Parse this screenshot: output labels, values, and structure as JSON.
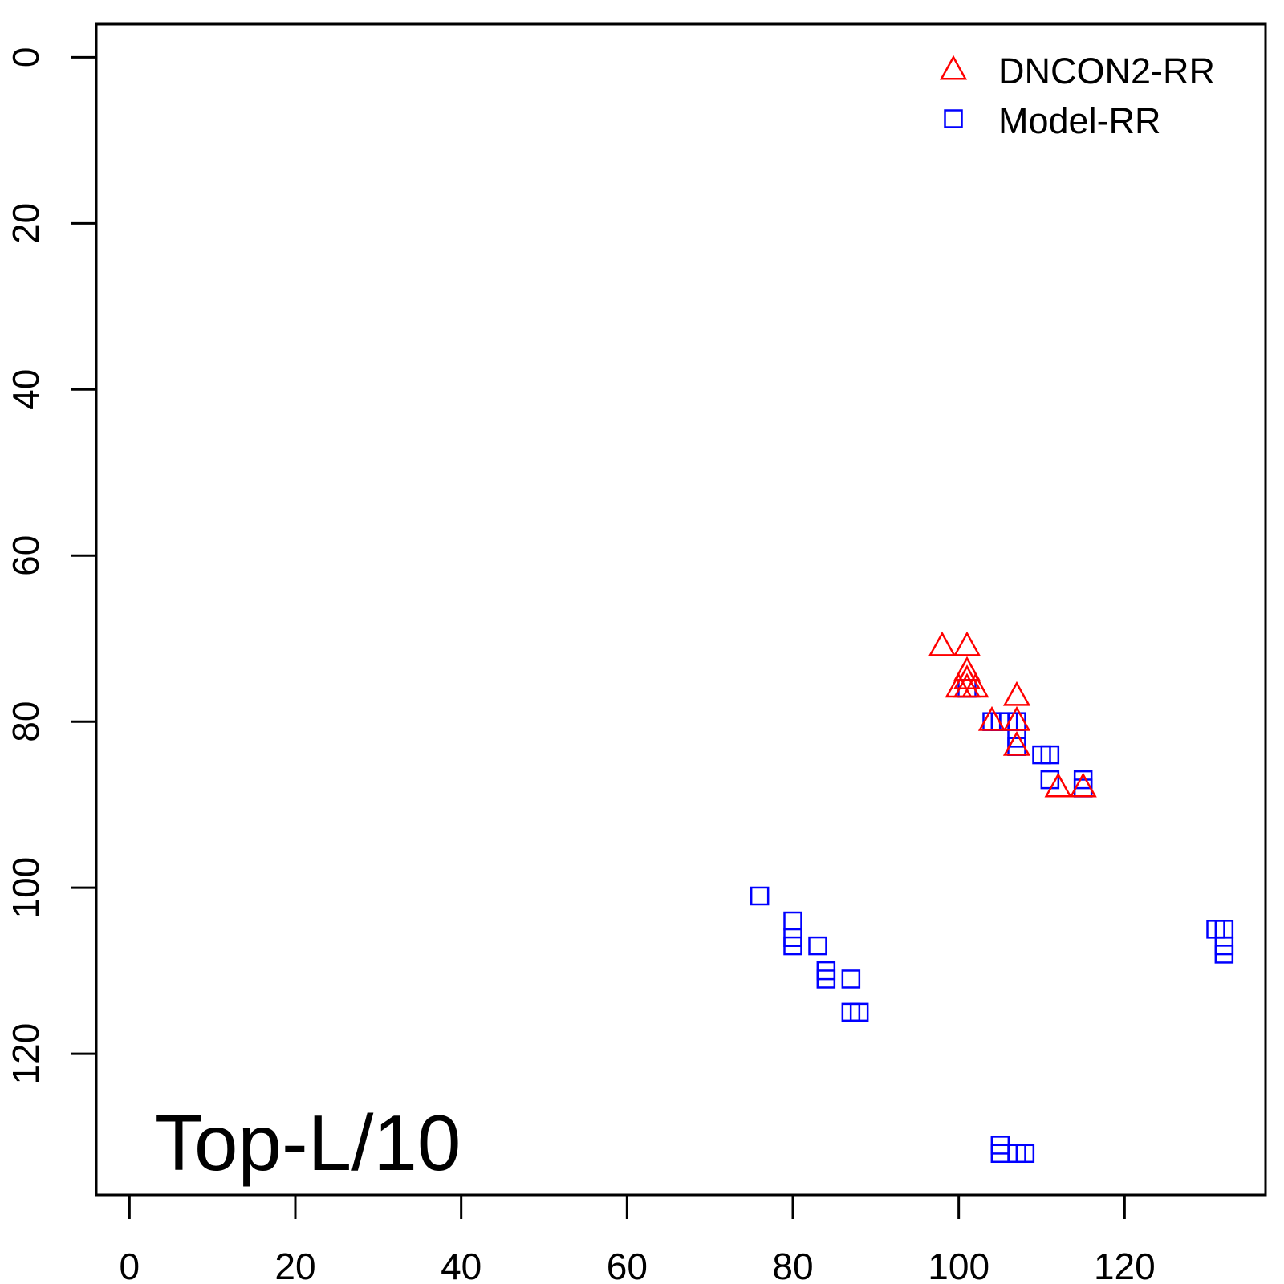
{
  "chart_data": {
    "type": "scatter",
    "annotation": "Top-L/10",
    "xlabel": "",
    "ylabel": "",
    "xlim": [
      -4,
      137
    ],
    "ylim": [
      -4,
      137
    ],
    "y_axis_reversed": true,
    "x_ticks": [
      0,
      20,
      40,
      60,
      80,
      100,
      120
    ],
    "y_ticks": [
      0,
      20,
      40,
      60,
      80,
      100,
      120
    ],
    "grid": false,
    "legend_position": "top-right",
    "series": [
      {
        "name": "DNCON2-RR",
        "marker": "triangle-open",
        "color": "#ff0000",
        "points": [
          [
            98,
            71
          ],
          [
            101,
            71
          ],
          [
            101,
            74
          ],
          [
            101,
            75
          ],
          [
            100,
            76
          ],
          [
            101,
            76
          ],
          [
            102,
            76
          ],
          [
            107,
            77
          ],
          [
            104,
            80
          ],
          [
            107,
            80
          ],
          [
            107,
            83
          ],
          [
            112,
            88
          ],
          [
            115,
            88
          ]
        ]
      },
      {
        "name": "Model-RR",
        "marker": "square-open",
        "color": "#0000ff",
        "points": [
          [
            101,
            76
          ],
          [
            104,
            80
          ],
          [
            105,
            80
          ],
          [
            106,
            80
          ],
          [
            107,
            80
          ],
          [
            107,
            82
          ],
          [
            107,
            83
          ],
          [
            110,
            84
          ],
          [
            111,
            84
          ],
          [
            111,
            87
          ],
          [
            115,
            87
          ],
          [
            115,
            88
          ],
          [
            76,
            101
          ],
          [
            80,
            104
          ],
          [
            80,
            106
          ],
          [
            80,
            107
          ],
          [
            83,
            107
          ],
          [
            84,
            110
          ],
          [
            84,
            111
          ],
          [
            87,
            111
          ],
          [
            87,
            115
          ],
          [
            88,
            115
          ],
          [
            105,
            131
          ],
          [
            105,
            132
          ],
          [
            107,
            132
          ],
          [
            108,
            132
          ],
          [
            131,
            105
          ],
          [
            132,
            105
          ],
          [
            132,
            107
          ],
          [
            132,
            108
          ]
        ]
      }
    ]
  }
}
